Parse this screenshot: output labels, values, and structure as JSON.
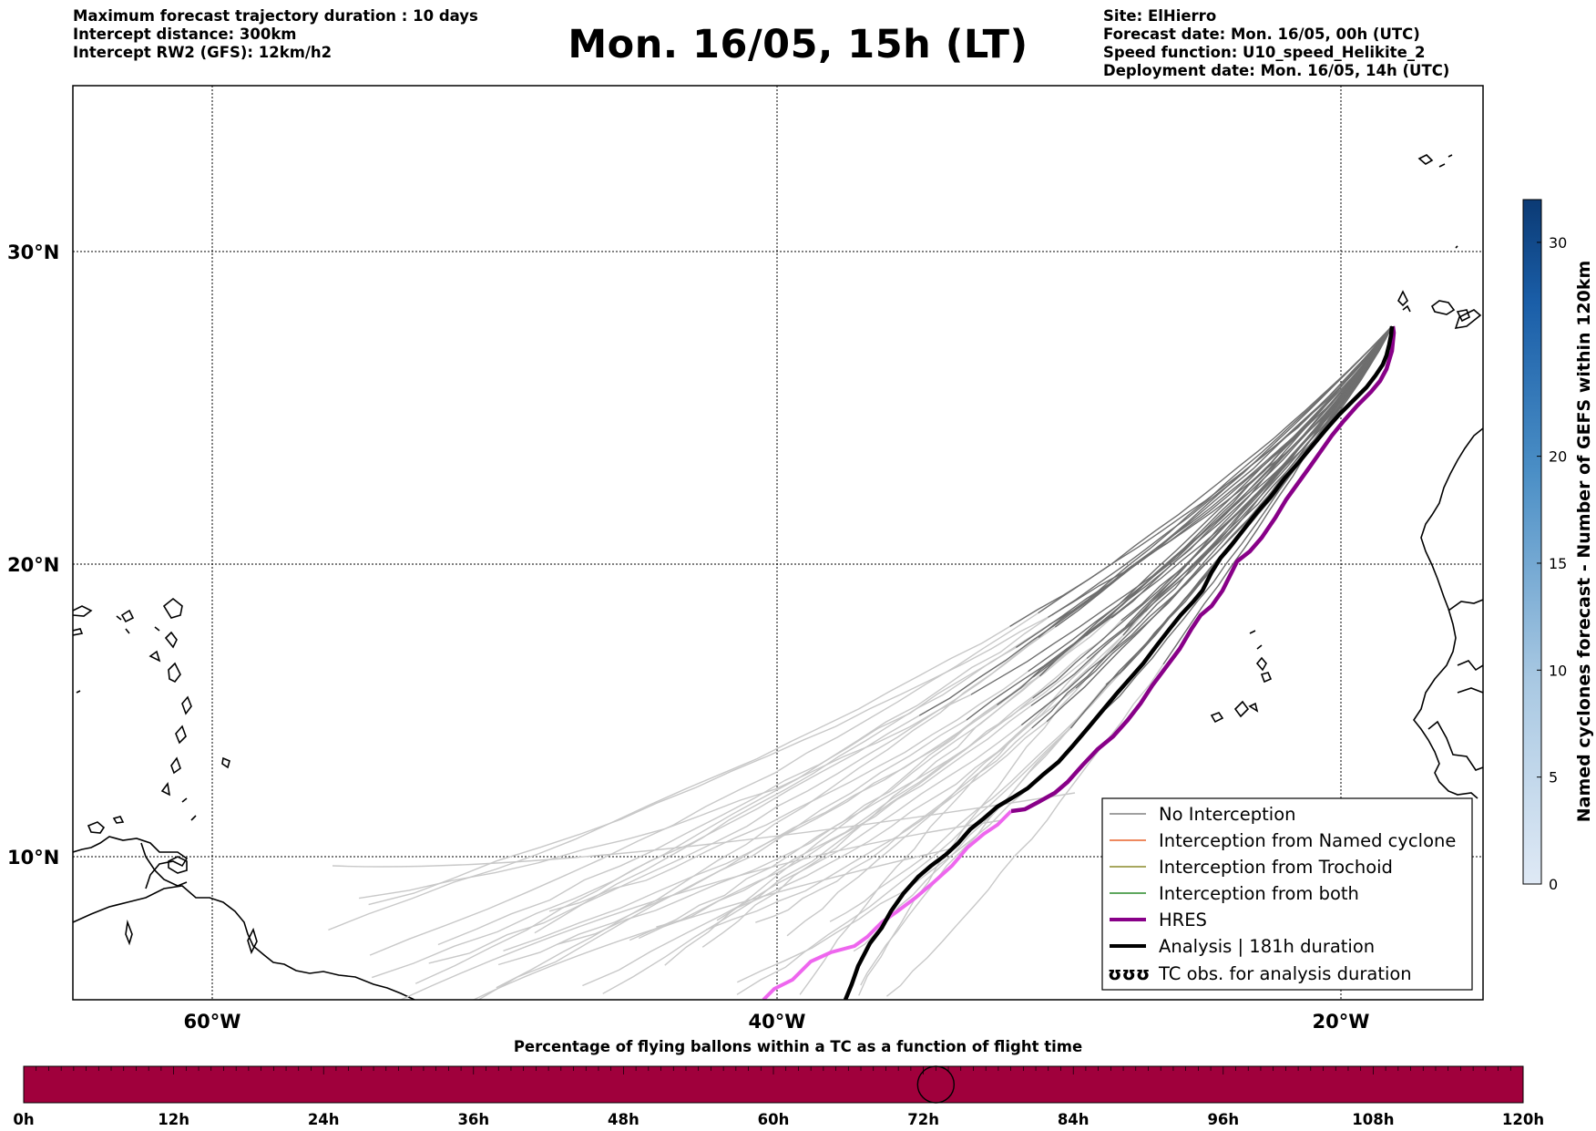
{
  "header": {
    "left_lines": [
      "Maximum forecast trajectory duration : 10 days",
      "Intercept distance: 300km",
      "Intercept RW2 (GFS):  12km/h2"
    ],
    "title": "Mon. 16/05, 15h (LT)",
    "right_lines": [
      "Site: ElHierro",
      "Forecast date: Mon. 16/05, 00h (UTC)",
      "Speed function: U10_speed_Helikite_2",
      "Deployment date: Mon. 16/05, 14h (UTC)"
    ]
  },
  "map": {
    "lat_labels": [
      "30°N",
      "20°N",
      "10°N"
    ],
    "lon_labels": [
      "60°W",
      "40°W",
      "20°W"
    ],
    "legend": [
      {
        "label": "No Interception",
        "color": "#808080",
        "style": "thin"
      },
      {
        "label": "Interception from Named cyclone",
        "color": "#e8622a",
        "style": "thin"
      },
      {
        "label": "Interception from Trochoid",
        "color": "#8a8a2a",
        "style": "thin"
      },
      {
        "label": "Interception from both",
        "color": "#2a8a2a",
        "style": "thin"
      },
      {
        "label": "HRES",
        "color": "#880088",
        "style": "thick"
      },
      {
        "label": "Analysis | 181h duration",
        "color": "#000000",
        "style": "thick"
      },
      {
        "label": "TC obs. for analysis duration",
        "color": "#000000",
        "style": "symbol",
        "symbol": "ʊʊʊ"
      }
    ],
    "colors": {
      "ensemble_dark": "#6e6e6e",
      "ensemble_light": "#c8c8c8",
      "hres_dark": "#880088",
      "hres_light": "#ee66ee",
      "analysis": "#000000"
    }
  },
  "colorbar": {
    "title": "Named cyclones forecast - Number of GEFS within 120km",
    "ticks": [
      "0",
      "5",
      "10",
      "15",
      "20",
      "30"
    ],
    "range": [
      0,
      32
    ]
  },
  "timebar": {
    "title": "Percentage of flying ballons within a TC as a function of flight time",
    "labels": [
      "0h",
      "12h",
      "24h",
      "36h",
      "48h",
      "60h",
      "72h",
      "84h",
      "96h",
      "108h",
      "120h"
    ],
    "color": "#a0003c",
    "current_hour": 73
  }
}
